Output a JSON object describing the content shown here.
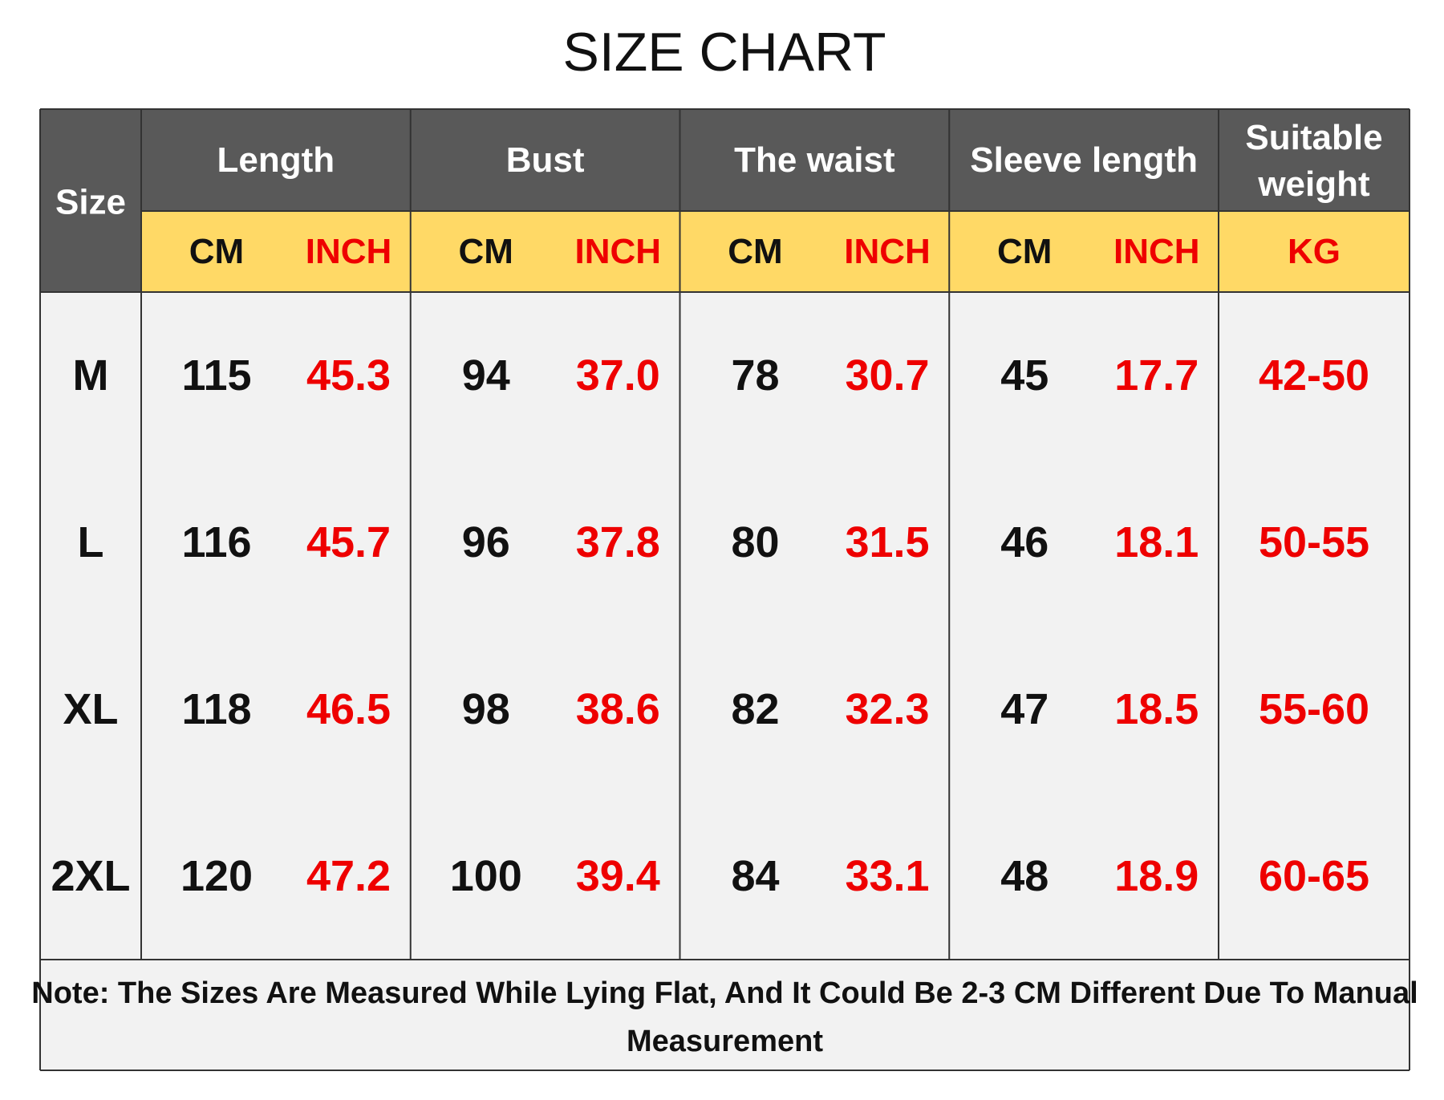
{
  "header": {
    "title": "SIZE CHART"
  },
  "table": {
    "size_label": "Size",
    "columns": [
      {
        "label": "Length",
        "units": [
          "CM",
          "INCH"
        ]
      },
      {
        "label": "Bust",
        "units": [
          "CM",
          "INCH"
        ]
      },
      {
        "label": "The waist",
        "units": [
          "CM",
          "INCH"
        ]
      },
      {
        "label": "Sleeve length",
        "units": [
          "CM",
          "INCH"
        ]
      },
      {
        "label": [
          "Suitable",
          "weight"
        ],
        "units": [
          "KG"
        ]
      }
    ],
    "rows": [
      {
        "size": "M",
        "values": [
          "115",
          "45.3",
          "94",
          "37.0",
          "78",
          "30.7",
          "45",
          "17.7",
          "42-50"
        ]
      },
      {
        "size": "L",
        "values": [
          "116",
          "45.7",
          "96",
          "37.8",
          "80",
          "31.5",
          "46",
          "18.1",
          "50-55"
        ]
      },
      {
        "size": "XL",
        "values": [
          "118",
          "46.5",
          "98",
          "38.6",
          "82",
          "32.3",
          "47",
          "18.5",
          "55-60"
        ]
      },
      {
        "size": "2XL",
        "values": [
          "120",
          "47.2",
          "100",
          "39.4",
          "84",
          "33.1",
          "48",
          "18.9",
          "60-65"
        ]
      }
    ],
    "note": [
      "Note: The Sizes Are Measured While Lying Flat, And It Could Be 2-3 CM Different Due To Manual",
      "Measurement"
    ]
  }
}
